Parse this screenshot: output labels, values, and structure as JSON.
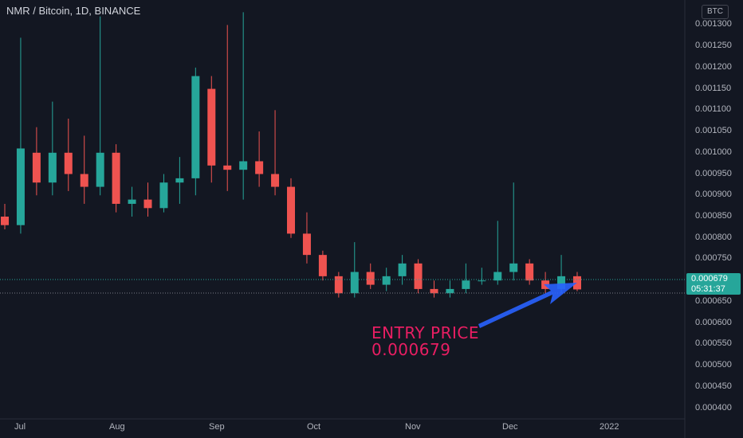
{
  "header": {
    "title": "NMR / Bitcoin, 1D, BINANCE",
    "currency_button": "BTC"
  },
  "price_axis": {
    "labels": [
      "0.001300",
      "0.001250",
      "0.001200",
      "0.001150",
      "0.001100",
      "0.001050",
      "0.001000",
      "0.000950",
      "0.000900",
      "0.000850",
      "0.000800",
      "0.000750",
      "0.000700",
      "0.000650",
      "0.000600",
      "0.000550",
      "0.000500",
      "0.000450",
      "0.000400"
    ]
  },
  "time_axis": {
    "labels": [
      "Jul",
      "Aug",
      "Sep",
      "Oct",
      "Nov",
      "Dec",
      "2022"
    ]
  },
  "last_price": {
    "value": "0.000679",
    "countdown": "05:31:37",
    "color": "#26a69a"
  },
  "annotation": {
    "line1": "ENTRY PRICE",
    "line2": "0.000679",
    "color": "#e91e63",
    "arrow_color": "#2962ff"
  },
  "colors": {
    "background": "#131722",
    "up": "#26a69a",
    "down": "#ef5350"
  },
  "chart_data": {
    "type": "candlestick",
    "title": "NMR / Bitcoin, 1D, BINANCE",
    "xlabel": "",
    "ylabel": "",
    "ylim": [
      0.000375,
      0.001325
    ],
    "x_ticks": [
      "Jul",
      "Aug",
      "Sep",
      "Oct",
      "Nov",
      "Dec",
      "2022"
    ],
    "last_price": 0.000679,
    "series": [
      {
        "date": "Jun 28",
        "o": 0.00085,
        "h": 0.00088,
        "l": 0.00082,
        "c": 0.00083
      },
      {
        "date": "Jul 01",
        "o": 0.00083,
        "h": 0.00127,
        "l": 0.00081,
        "c": 0.00101
      },
      {
        "date": "Jul 08",
        "o": 0.001,
        "h": 0.00106,
        "l": 0.0009,
        "c": 0.00093
      },
      {
        "date": "Jul 15",
        "o": 0.00093,
        "h": 0.00112,
        "l": 0.0009,
        "c": 0.001
      },
      {
        "date": "Jul 22",
        "o": 0.001,
        "h": 0.00108,
        "l": 0.00091,
        "c": 0.00095
      },
      {
        "date": "Jul 29",
        "o": 0.00095,
        "h": 0.00104,
        "l": 0.00088,
        "c": 0.00092
      },
      {
        "date": "Aug 02",
        "o": 0.00092,
        "h": 0.00132,
        "l": 0.0009,
        "c": 0.001
      },
      {
        "date": "Aug 09",
        "o": 0.001,
        "h": 0.00102,
        "l": 0.00086,
        "c": 0.00088
      },
      {
        "date": "Aug 16",
        "o": 0.00088,
        "h": 0.00092,
        "l": 0.00085,
        "c": 0.00089
      },
      {
        "date": "Aug 23",
        "o": 0.00089,
        "h": 0.00093,
        "l": 0.00085,
        "c": 0.00087
      },
      {
        "date": "Aug 30",
        "o": 0.00087,
        "h": 0.00095,
        "l": 0.00086,
        "c": 0.00093
      },
      {
        "date": "Sep 06",
        "o": 0.00093,
        "h": 0.00099,
        "l": 0.00088,
        "c": 0.00094
      },
      {
        "date": "Sep 09",
        "o": 0.00094,
        "h": 0.0012,
        "l": 0.0009,
        "c": 0.00118
      },
      {
        "date": "Sep 13",
        "o": 0.00115,
        "h": 0.00118,
        "l": 0.00093,
        "c": 0.00097
      },
      {
        "date": "Sep 18",
        "o": 0.00097,
        "h": 0.0013,
        "l": 0.00091,
        "c": 0.00096
      },
      {
        "date": "Sep 22",
        "o": 0.00096,
        "h": 0.00133,
        "l": 0.00089,
        "c": 0.00098
      },
      {
        "date": "Sep 27",
        "o": 0.00098,
        "h": 0.00105,
        "l": 0.00092,
        "c": 0.00095
      },
      {
        "date": "Oct 03",
        "o": 0.00095,
        "h": 0.0011,
        "l": 0.0009,
        "c": 0.00092
      },
      {
        "date": "Oct 08",
        "o": 0.00092,
        "h": 0.00094,
        "l": 0.0008,
        "c": 0.00081
      },
      {
        "date": "Oct 13",
        "o": 0.00081,
        "h": 0.00086,
        "l": 0.00074,
        "c": 0.00076
      },
      {
        "date": "Oct 18",
        "o": 0.00076,
        "h": 0.00077,
        "l": 0.0007,
        "c": 0.00071
      },
      {
        "date": "Oct 23",
        "o": 0.00071,
        "h": 0.00072,
        "l": 0.00066,
        "c": 0.00067
      },
      {
        "date": "Oct 28",
        "o": 0.00067,
        "h": 0.00079,
        "l": 0.00066,
        "c": 0.00072
      },
      {
        "date": "Nov 02",
        "o": 0.00072,
        "h": 0.00074,
        "l": 0.00068,
        "c": 0.00069
      },
      {
        "date": "Nov 07",
        "o": 0.00069,
        "h": 0.00073,
        "l": 0.000675,
        "c": 0.00071
      },
      {
        "date": "Nov 12",
        "o": 0.00071,
        "h": 0.00076,
        "l": 0.00069,
        "c": 0.00074
      },
      {
        "date": "Nov 17",
        "o": 0.00074,
        "h": 0.00075,
        "l": 0.00067,
        "c": 0.00068
      },
      {
        "date": "Nov 22",
        "o": 0.00068,
        "h": 0.0007,
        "l": 0.00066,
        "c": 0.00067
      },
      {
        "date": "Nov 27",
        "o": 0.00067,
        "h": 0.0007,
        "l": 0.00066,
        "c": 0.00068
      },
      {
        "date": "Dec 02",
        "o": 0.00068,
        "h": 0.00074,
        "l": 0.00067,
        "c": 0.0007
      },
      {
        "date": "Dec 07",
        "o": 0.0007,
        "h": 0.00073,
        "l": 0.00069,
        "c": 0.0007
      },
      {
        "date": "Dec 10",
        "o": 0.0007,
        "h": 0.00084,
        "l": 0.00069,
        "c": 0.00072
      },
      {
        "date": "Dec 13",
        "o": 0.00072,
        "h": 0.00093,
        "l": 0.0007,
        "c": 0.00074
      },
      {
        "date": "Dec 16",
        "o": 0.00074,
        "h": 0.00075,
        "l": 0.00069,
        "c": 0.0007
      },
      {
        "date": "Dec 19",
        "o": 0.0007,
        "h": 0.00072,
        "l": 0.00067,
        "c": 0.00068
      },
      {
        "date": "Dec 22",
        "o": 0.00068,
        "h": 0.00076,
        "l": 0.00067,
        "c": 0.00071
      },
      {
        "date": "Dec 25",
        "o": 0.00071,
        "h": 0.00072,
        "l": 0.000675,
        "c": 0.000679
      }
    ]
  }
}
